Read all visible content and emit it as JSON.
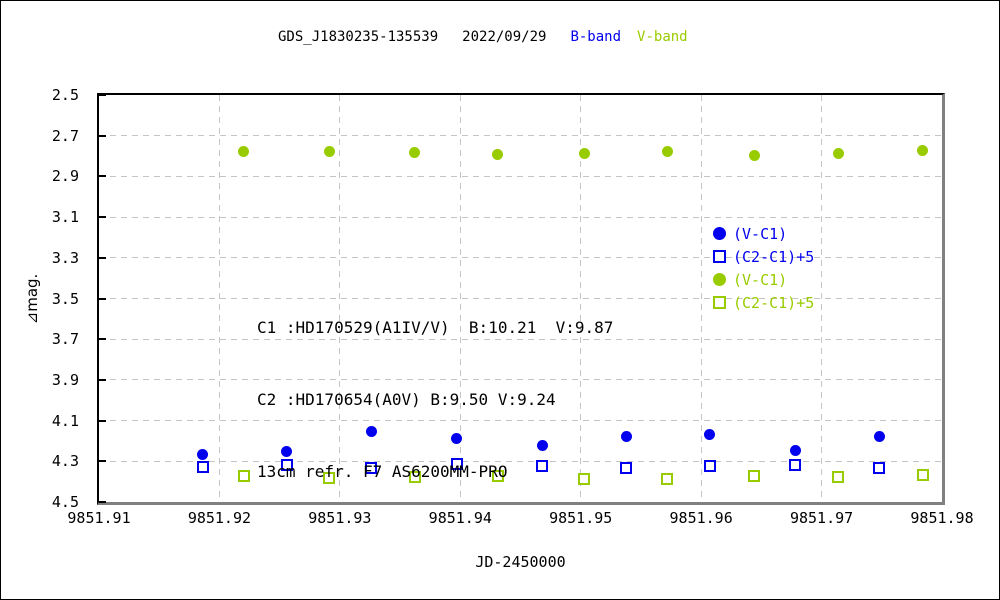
{
  "title": {
    "target": "GDS_J1830235-135539",
    "date": "2022/09/29",
    "b_band": "B-band",
    "v_band": "V-band"
  },
  "colors": {
    "b_band": "#0000ee",
    "v_band": "#99cc00",
    "grid": "#c4c4c4",
    "frame": "#000000",
    "frame_shadow": "#808080",
    "text": "#000000",
    "background": "#ffffff"
  },
  "annotation": {
    "line1": "C1 :HD170529(A1IV/V)  B:10.21  V:9.87",
    "line2": "C2 :HD170654(A0V) B:9.50 V:9.24",
    "line3": "13cm refr. F7 AS6200MM-PRO"
  },
  "legend": {
    "items": [
      {
        "label": "(V-C1)",
        "marker": "circle",
        "fill": true,
        "color": "#0000ee"
      },
      {
        "label": "(C2-C1)+5",
        "marker": "square",
        "fill": false,
        "color": "#0000ee"
      },
      {
        "label": "(V-C1)",
        "marker": "circle",
        "fill": true,
        "color": "#99cc00"
      },
      {
        "label": "(C2-C1)+5",
        "marker": "square",
        "fill": false,
        "color": "#99cc00"
      }
    ]
  },
  "chart_data": {
    "type": "scatter",
    "title": "GDS_J1830235-135539  2022/09/29  B-band  V-band",
    "xlabel": "JD-2450000",
    "ylabel": "⊿mag.",
    "xlim": [
      9851.91,
      9851.98
    ],
    "ylim": [
      4.5,
      2.5
    ],
    "y_inverted": true,
    "grid": true,
    "legend_position": "middle-right",
    "xticks": [
      9851.91,
      9851.92,
      9851.93,
      9851.94,
      9851.95,
      9851.96,
      9851.97,
      9851.98
    ],
    "xtick_labels": [
      "9851.91",
      "9851.92",
      "9851.93",
      "9851.94",
      "9851.95",
      "9851.96",
      "9851.97",
      "9851.98"
    ],
    "yticks": [
      2.5,
      2.7,
      2.9,
      3.1,
      3.3,
      3.5,
      3.7,
      3.9,
      4.1,
      4.3,
      4.5
    ],
    "ytick_labels": [
      "2.5",
      "2.7",
      "2.9",
      "3.1",
      "3.3",
      "3.5",
      "3.7",
      "3.9",
      "4.1",
      "4.3",
      "4.5"
    ],
    "series": [
      {
        "name": "B-band (V-C1)",
        "marker": "circle",
        "fill": true,
        "color": "#0000ee",
        "x": [
          9851.9186,
          9851.9256,
          9851.9326,
          9851.9397,
          9851.9468,
          9851.9538,
          9851.9607,
          9851.9678,
          9851.9748
        ],
        "y": [
          4.265,
          4.25,
          4.156,
          4.186,
          4.222,
          4.176,
          4.169,
          4.245,
          4.176
        ]
      },
      {
        "name": "B-band (C2-C1)+5",
        "marker": "square",
        "fill": false,
        "color": "#0000ee",
        "x": [
          9851.9186,
          9851.9256,
          9851.9326,
          9851.9397,
          9851.9468,
          9851.9538,
          9851.9607,
          9851.9678,
          9851.9748
        ],
        "y": [
          4.327,
          4.32,
          4.332,
          4.315,
          4.323,
          4.335,
          4.323,
          4.32,
          4.332
        ]
      },
      {
        "name": "V-band (V-C1)",
        "marker": "circle",
        "fill": true,
        "color": "#99cc00",
        "x": [
          9851.922,
          9851.9291,
          9851.9362,
          9851.9431,
          9851.9503,
          9851.9572,
          9851.9644,
          9851.9714,
          9851.9784
        ],
        "y": [
          2.78,
          2.78,
          2.785,
          2.79,
          2.787,
          2.777,
          2.796,
          2.787,
          2.775
        ]
      },
      {
        "name": "V-band (C2-C1)+5",
        "marker": "square",
        "fill": false,
        "color": "#99cc00",
        "x": [
          9851.922,
          9851.9291,
          9851.9362,
          9851.9431,
          9851.9503,
          9851.9572,
          9851.9644,
          9851.9714,
          9851.9784
        ],
        "y": [
          4.372,
          4.381,
          4.377,
          4.374,
          4.387,
          4.387,
          4.371,
          4.377,
          4.367
        ]
      }
    ]
  }
}
